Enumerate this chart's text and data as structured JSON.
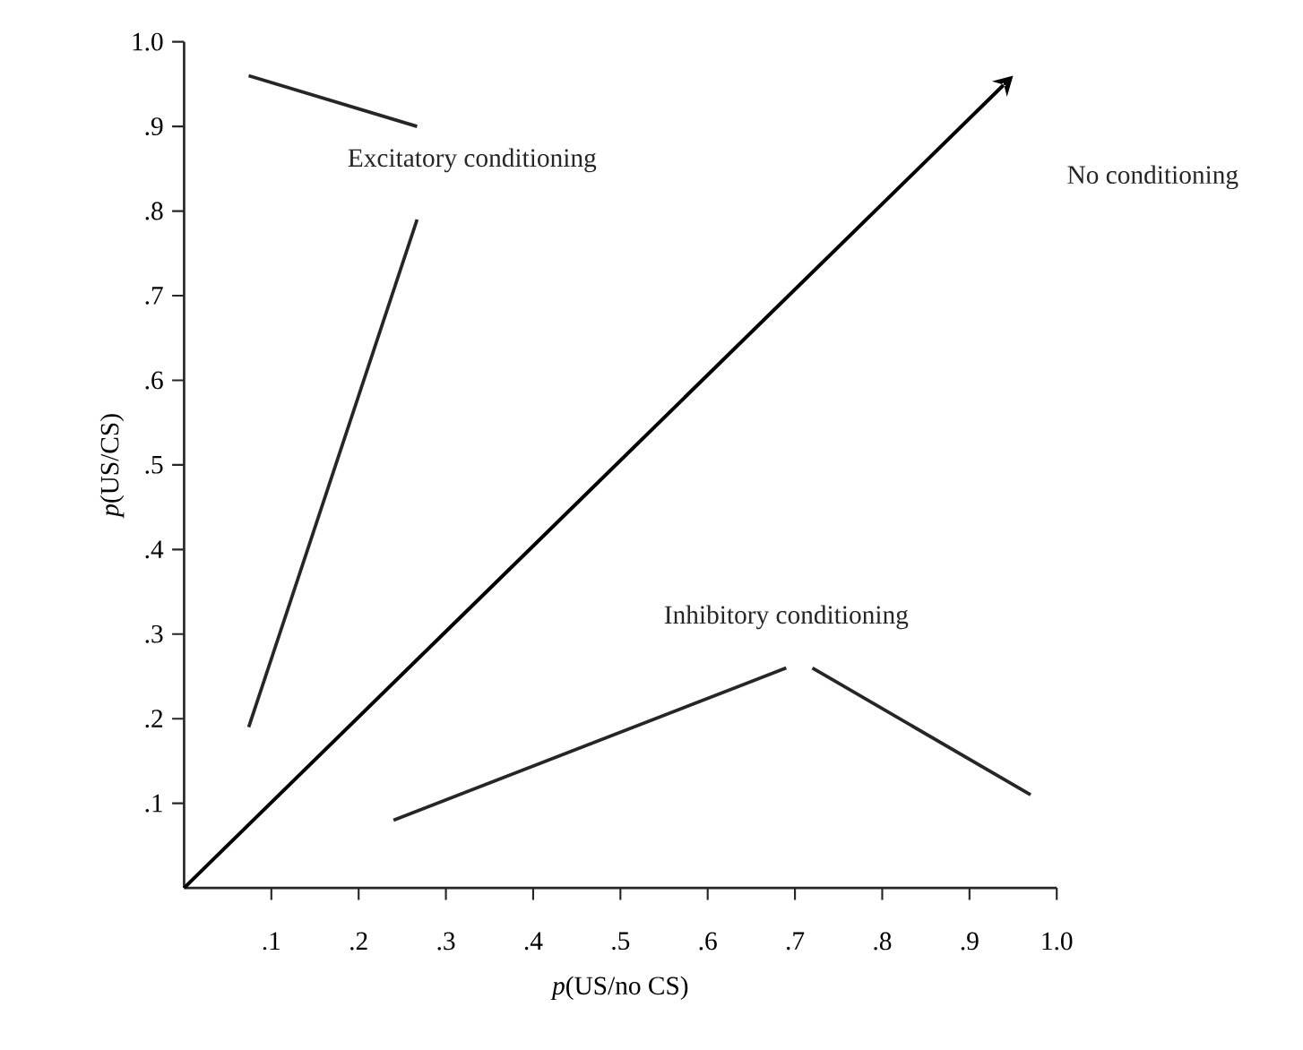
{
  "chart_data": {
    "type": "line",
    "xlabel": "*p*(US/no CS)",
    "ylabel": "*p*(US/CS)",
    "xlim": [
      0,
      1
    ],
    "ylim": [
      0,
      1
    ],
    "xticks": [
      {
        "value": 0.1,
        "label": ".1"
      },
      {
        "value": 0.2,
        "label": ".2"
      },
      {
        "value": 0.3,
        "label": ".3"
      },
      {
        "value": 0.4,
        "label": ".4"
      },
      {
        "value": 0.5,
        "label": ".5"
      },
      {
        "value": 0.6,
        "label": ".6"
      },
      {
        "value": 0.7,
        "label": ".7"
      },
      {
        "value": 0.8,
        "label": ".8"
      },
      {
        "value": 0.9,
        "label": ".9"
      },
      {
        "value": 1,
        "label": "1.0"
      }
    ],
    "yticks": [
      {
        "value": 0.1,
        "label": ".1"
      },
      {
        "value": 0.2,
        "label": ".2"
      },
      {
        "value": 0.3,
        "label": ".3"
      },
      {
        "value": 0.4,
        "label": ".4"
      },
      {
        "value": 0.5,
        "label": ".5"
      },
      {
        "value": 0.6,
        "label": ".6"
      },
      {
        "value": 0.7,
        "label": ".7"
      },
      {
        "value": 0.8,
        "label": ".8"
      },
      {
        "value": 0.9,
        "label": ".9"
      },
      {
        "value": 1,
        "label": "1.0"
      }
    ],
    "annotations": [
      "Excitatory conditioning",
      "No conditioning",
      "Inhibitory conditioning"
    ],
    "grid": false
  }
}
